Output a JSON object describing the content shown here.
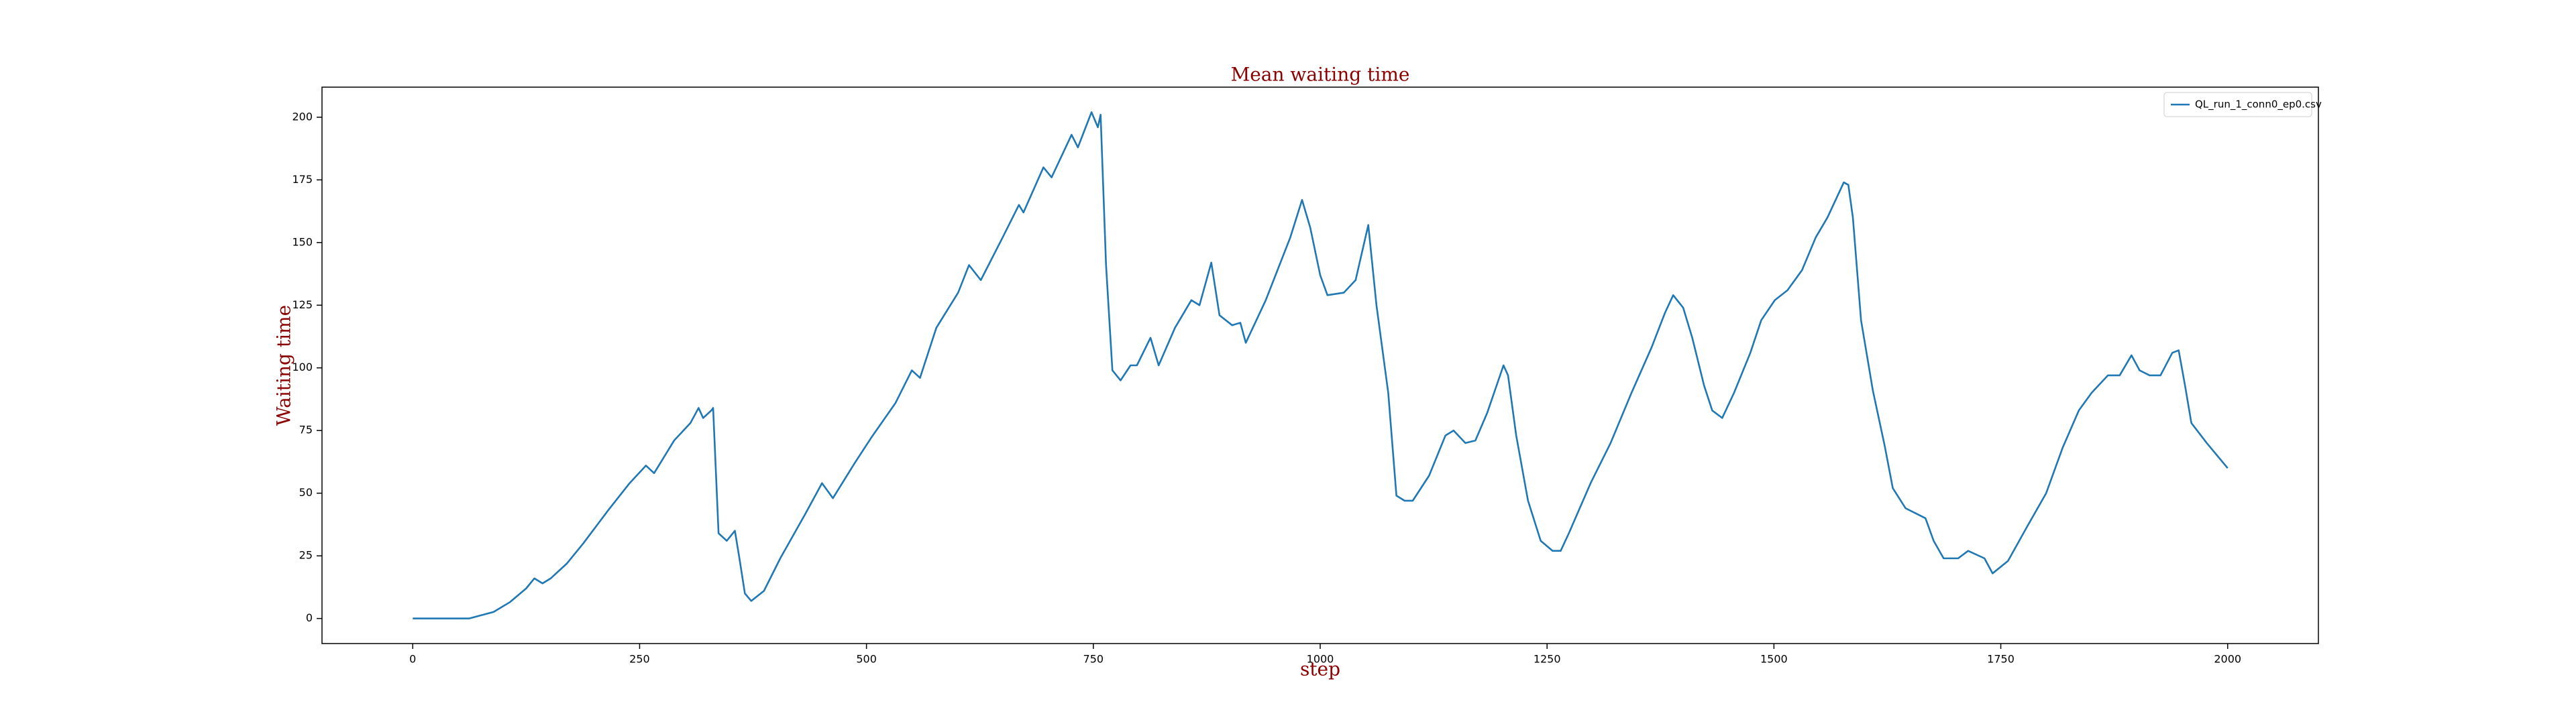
{
  "chart_data": {
    "type": "line",
    "title": "Mean waiting time",
    "xlabel": "step",
    "ylabel": "Waiting time",
    "xlim": [
      -100,
      2100
    ],
    "ylim": [
      -10,
      212
    ],
    "xticks": [
      0,
      250,
      500,
      750,
      1000,
      1250,
      1500,
      1750,
      2000
    ],
    "yticks": [
      0,
      25,
      50,
      75,
      100,
      125,
      150,
      175,
      200
    ],
    "grid": false,
    "legend": "upper right",
    "x": [
      0,
      62,
      89,
      107,
      125,
      134,
      143,
      152,
      170,
      188,
      215,
      239,
      257,
      266,
      288,
      306,
      315,
      320,
      329,
      331,
      337,
      346,
      355,
      360,
      366,
      373,
      387,
      405,
      433,
      451,
      463,
      487,
      505,
      532,
      550,
      559,
      577,
      601,
      613,
      626,
      650,
      668,
      673,
      695,
      704,
      726,
      733,
      748,
      755,
      758,
      764,
      771,
      780,
      791,
      798,
      813,
      822,
      840,
      858,
      867,
      880,
      889,
      903,
      912,
      918,
      940,
      967,
      980,
      989,
      1000,
      1008,
      1026,
      1039,
      1053,
      1062,
      1075,
      1084,
      1093,
      1102,
      1120,
      1138,
      1147,
      1160,
      1171,
      1184,
      1202,
      1207,
      1216,
      1229,
      1243,
      1256,
      1265,
      1274,
      1298,
      1320,
      1343,
      1365,
      1380,
      1389,
      1400,
      1410,
      1423,
      1432,
      1443,
      1456,
      1474,
      1486,
      1501,
      1515,
      1531,
      1546,
      1559,
      1577,
      1582,
      1587,
      1596,
      1609,
      1622,
      1631,
      1645,
      1667,
      1676,
      1687,
      1703,
      1714,
      1732,
      1741,
      1758,
      1778,
      1800,
      1818,
      1836,
      1850,
      1868,
      1881,
      1894,
      1903,
      1914,
      1926,
      1939,
      1946,
      1953,
      1960,
      1977,
      2000
    ],
    "series": [
      {
        "name": "QL_run_1_conn0_ep0.csv",
        "color": "#1f77b4",
        "values": [
          0,
          0,
          2.6,
          6.5,
          12,
          16,
          14,
          16,
          22,
          30,
          43,
          54,
          61,
          58,
          71,
          78,
          84,
          80,
          83,
          84,
          34,
          31,
          35,
          24,
          10,
          7,
          11,
          24,
          42,
          54,
          48,
          62,
          72,
          86,
          99,
          96,
          116,
          130,
          141,
          135,
          152,
          165,
          162,
          180,
          176,
          193,
          188,
          202,
          196,
          201,
          141,
          99,
          95,
          101,
          101,
          112,
          101,
          116,
          127,
          125,
          142,
          121,
          117,
          118,
          110,
          127,
          152,
          167,
          156,
          137,
          129,
          130,
          135,
          157,
          125,
          90,
          49,
          47,
          47,
          57,
          73,
          75,
          70,
          71,
          82,
          101,
          97,
          73,
          47,
          31,
          27,
          27,
          34,
          54,
          70,
          90,
          108,
          122,
          129,
          124,
          112,
          93,
          83,
          80,
          90,
          106,
          119,
          127,
          131,
          139,
          152,
          160,
          174,
          173,
          160,
          119,
          91,
          69,
          52,
          44,
          40,
          31,
          24,
          24,
          27,
          24,
          18,
          23,
          36,
          50,
          68,
          83,
          90,
          97,
          97,
          105,
          99,
          97,
          97,
          106,
          107,
          93,
          78,
          70,
          60
        ]
      }
    ]
  }
}
